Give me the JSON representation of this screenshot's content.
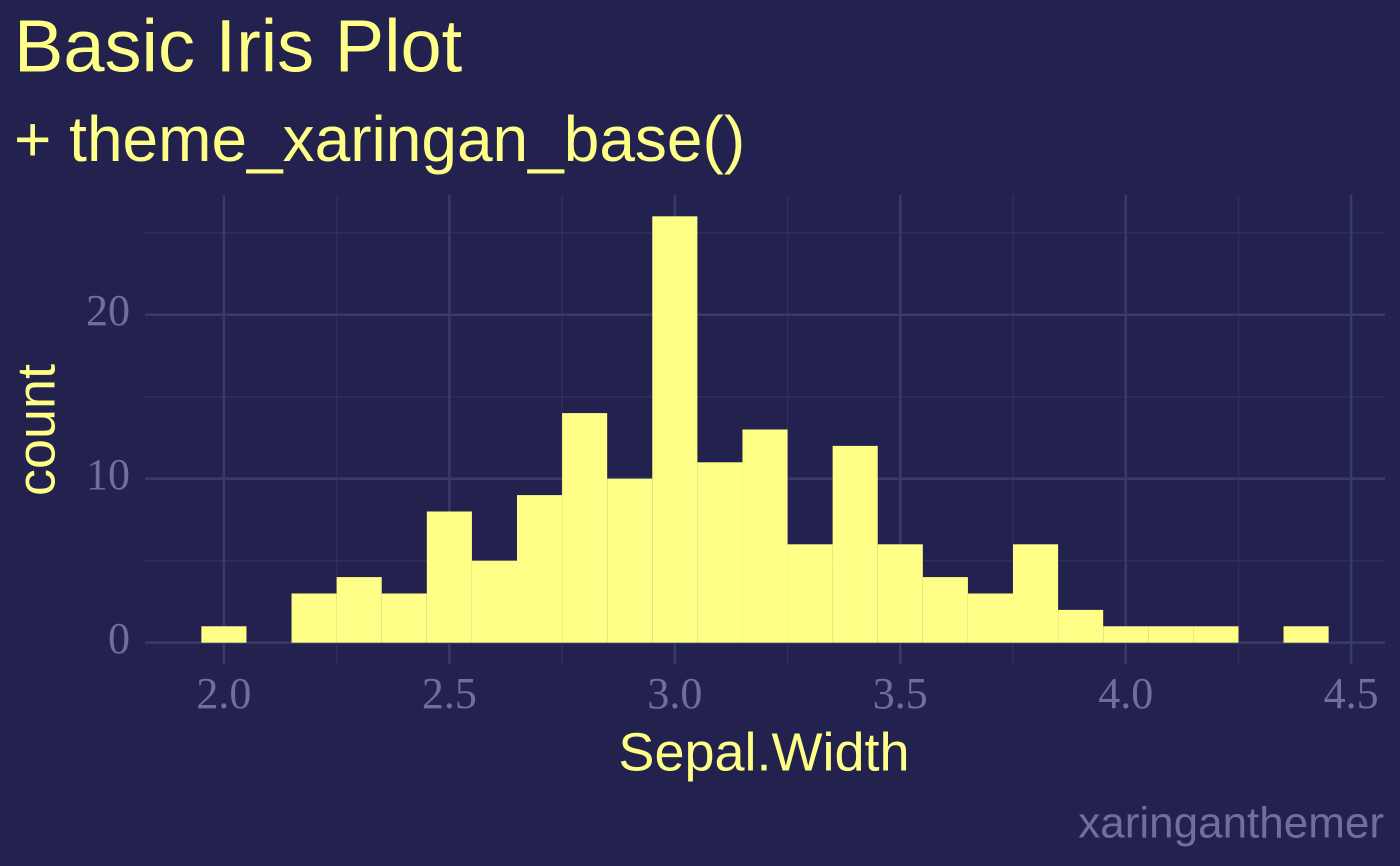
{
  "chart_data": {
    "type": "histogram",
    "title": "Basic Iris Plot",
    "subtitle": "+ theme_xaringan_base()",
    "x_label": "Sepal.Width",
    "y_label": "count",
    "caption": "xaringanthemer",
    "bins": [
      1.95,
      2.05,
      2.15,
      2.25,
      2.35,
      2.45,
      2.55,
      2.65,
      2.75,
      2.85,
      2.95,
      3.05,
      3.15,
      3.25,
      3.35,
      3.45,
      3.55,
      3.65,
      3.75,
      3.85,
      3.95,
      4.05,
      4.15,
      4.25,
      4.35,
      4.45
    ],
    "values": [
      1,
      0,
      3,
      4,
      3,
      8,
      5,
      9,
      14,
      10,
      26,
      11,
      13,
      6,
      12,
      6,
      4,
      3,
      6,
      2,
      1,
      1,
      1,
      0,
      1
    ],
    "color": "#FFFF88",
    "xlim": [
      1.825,
      4.575
    ],
    "ylim": [
      -1.3,
      27.3
    ],
    "xticks": [
      {
        "value": 2,
        "label": "2.0"
      },
      2.5,
      {
        "value": 3,
        "label": "3.0"
      },
      3.5,
      {
        "value": 4,
        "label": "4.0"
      },
      4.5
    ],
    "yticks": [
      0,
      10,
      20
    ],
    "grid": true,
    "minor_grid": true
  }
}
